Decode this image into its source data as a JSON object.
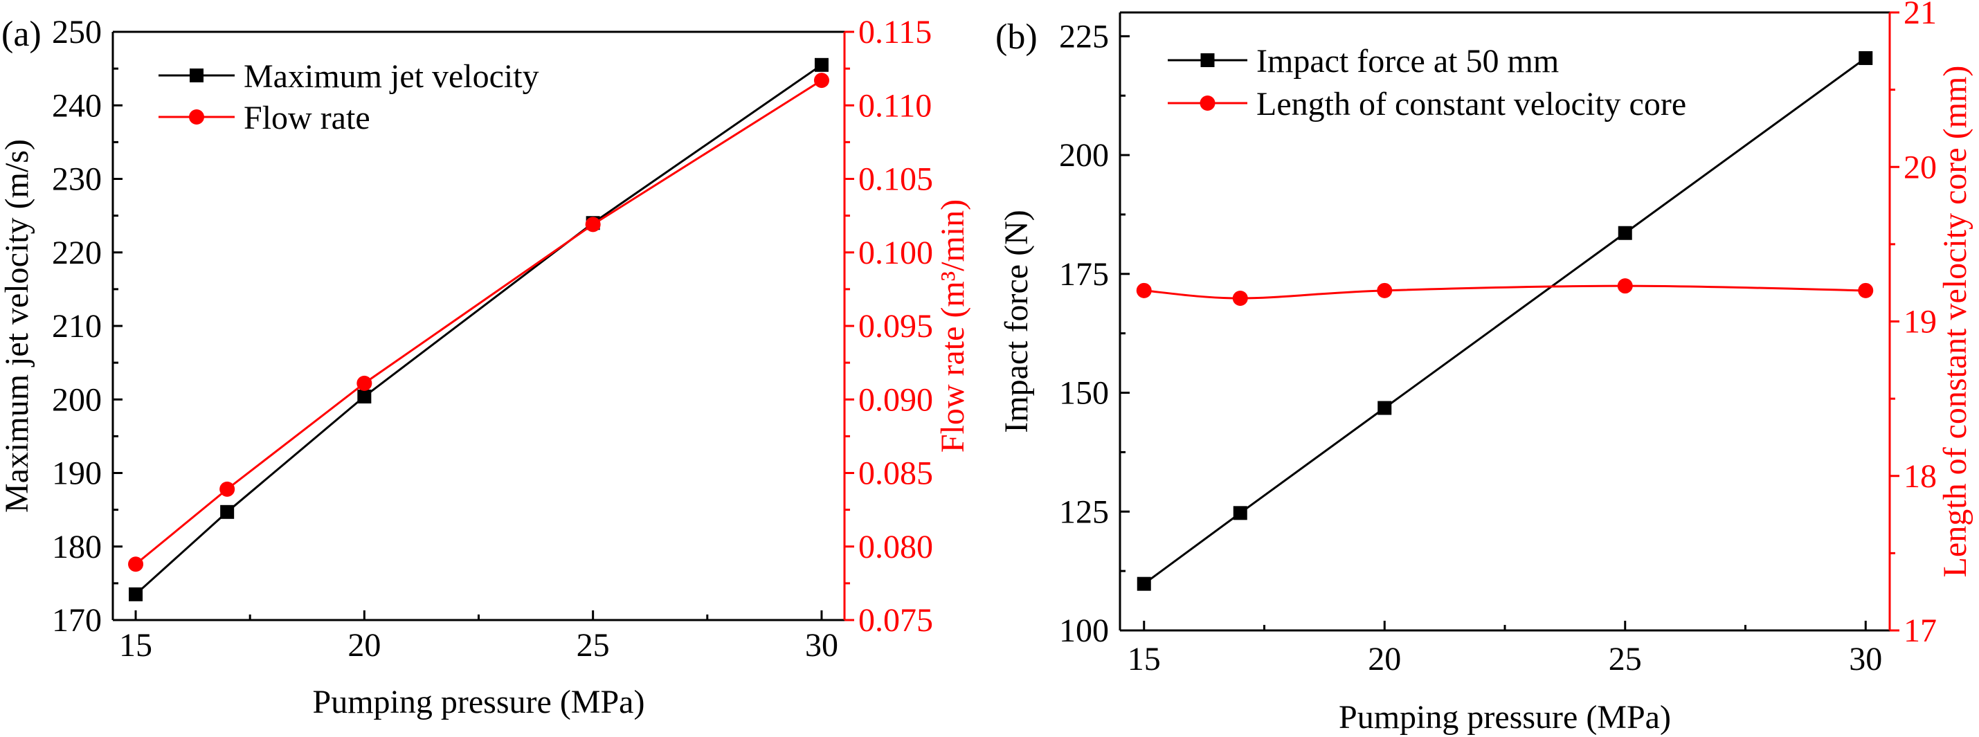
{
  "chart_data": [
    {
      "panel_label": "(a)",
      "type": "line",
      "xlabel": "Pumping pressure (MPa)",
      "ylabel": "Maximum jet velocity (m/s)",
      "y2label": "Flow rate (m³/min)",
      "x": [
        15,
        17,
        20,
        25,
        30
      ],
      "xlim": [
        14.5,
        30.5
      ],
      "xticks": [
        15,
        20,
        25,
        30
      ],
      "ylim": [
        170,
        250
      ],
      "yticks": [
        170,
        180,
        190,
        200,
        210,
        220,
        230,
        240,
        250
      ],
      "y2lim": [
        0.075,
        0.115
      ],
      "y2ticks": [
        "0.075",
        "0.080",
        "0.085",
        "0.090",
        "0.095",
        "0.100",
        "0.105",
        "0.110",
        "0.115"
      ],
      "grid": false,
      "legend": "top-left",
      "series": [
        {
          "name": "Maximum jet velocity",
          "axis": "left",
          "marker": "square",
          "color": "#000000",
          "smooth": false,
          "values": [
            173.5,
            184.7,
            200.4,
            224.0,
            245.5
          ]
        },
        {
          "name": "Flow rate",
          "axis": "right",
          "marker": "circle",
          "color": "#ff0000",
          "smooth": false,
          "values": [
            0.0788,
            0.0839,
            0.0911,
            0.1019,
            0.1117
          ]
        }
      ]
    },
    {
      "panel_label": "(b)",
      "type": "line",
      "xlabel": "Pumping pressure (MPa)",
      "ylabel": "Impact force (N)",
      "y2label": "Length of constant velocity core (mm)",
      "x": [
        15,
        17,
        20,
        25,
        30
      ],
      "xlim": [
        14.5,
        30.5
      ],
      "xticks": [
        15,
        20,
        25,
        30
      ],
      "ylim": [
        100,
        230
      ],
      "yticks": [
        100,
        125,
        150,
        175,
        200,
        225
      ],
      "y2lim": [
        17,
        21
      ],
      "y2ticks": [
        "17",
        "18",
        "19",
        "20",
        "21"
      ],
      "grid": false,
      "legend": "top-left",
      "series": [
        {
          "name": "Impact force at 50 mm",
          "axis": "left",
          "marker": "square",
          "color": "#000000",
          "smooth": false,
          "values": [
            109.8,
            124.7,
            146.8,
            183.6,
            220.4
          ]
        },
        {
          "name": "Length of constant velocity core",
          "axis": "right",
          "marker": "circle",
          "color": "#ff0000",
          "smooth": true,
          "values": [
            19.2,
            19.15,
            19.2,
            19.23,
            19.2
          ]
        }
      ]
    }
  ]
}
